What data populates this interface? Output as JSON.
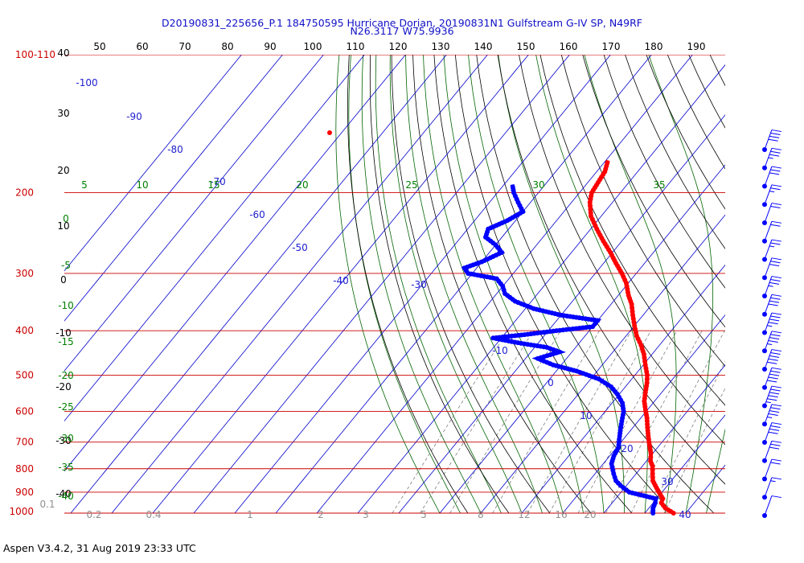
{
  "header": {
    "title_line1": "D20190831_225656_P.1 184750595 Hurricane Dorian, 20190831N1 Gulfstream G-IV SP, N49RF",
    "title_line2": "N26.3117 W75.9936"
  },
  "footer": {
    "text": "Aspen V3.4.2, 31 Aug 2019  23:33 UTC"
  },
  "colors": {
    "temperature": "#ff0000",
    "dewpoint": "#0000ff",
    "isobar": "#cc0000",
    "isotherm": "#0000cc",
    "dry_adiabat": "#000000",
    "moist_adiabat": "#006400",
    "mixing_ratio": "#808080"
  },
  "chart_data": {
    "type": "scatter",
    "kind": "skew-T log-P thermodynamic diagram",
    "pressure_axis": {
      "scale": "log",
      "range_hPa": [
        1000,
        100
      ],
      "tick_labels": [
        "100-110",
        "200",
        "300",
        "400",
        "500",
        "600",
        "700",
        "800",
        "900",
        "1000"
      ]
    },
    "left_temp_labels": [
      "40",
      "30",
      "20",
      "10",
      "0",
      "-10",
      "-20",
      "-30",
      "-40"
    ],
    "theta_top_labels": [
      "50",
      "60",
      "70",
      "80",
      "90",
      "100",
      "110",
      "120",
      "130",
      "140",
      "150",
      "160",
      "170",
      "180",
      "190"
    ],
    "isotherm_labels": [
      "-100",
      "-90",
      "-80",
      "-70",
      "-60",
      "-50",
      "-40",
      "-30",
      "-10",
      "0",
      "10",
      "20",
      "30",
      "40"
    ],
    "theta_e_labels": [
      "5",
      "10",
      "15",
      "20",
      "25",
      "30",
      "35"
    ],
    "theta_e_left_labels": [
      "0",
      "-5",
      "-10",
      "-15",
      "-20",
      "-25",
      "-30",
      "-35",
      "-40"
    ],
    "mixing_ratio_labels": [
      "0.1",
      "0.2",
      "0.4",
      "1",
      "2",
      "3",
      "5",
      "8",
      "12",
      "16",
      "20"
    ],
    "temperature_profile": {
      "name": "Temperature",
      "points": [
        [
          27.0,
          1000
        ],
        [
          24.0,
          975
        ],
        [
          22.0,
          950
        ],
        [
          21.5,
          930
        ],
        [
          20.0,
          910
        ],
        [
          18.5,
          890
        ],
        [
          17.0,
          870
        ],
        [
          15.5,
          850
        ],
        [
          14.0,
          820
        ],
        [
          12.5,
          790
        ],
        [
          11.0,
          770
        ],
        [
          9.5,
          740
        ],
        [
          7.5,
          710
        ],
        [
          5.5,
          680
        ],
        [
          3.5,
          650
        ],
        [
          1.5,
          620
        ],
        [
          -0.5,
          595
        ],
        [
          -2.5,
          570
        ],
        [
          -4.0,
          545
        ],
        [
          -5.5,
          520
        ],
        [
          -7.0,
          500
        ],
        [
          -9.5,
          475
        ],
        [
          -12.0,
          450
        ],
        [
          -14.5,
          430
        ],
        [
          -17.5,
          410
        ],
        [
          -20.0,
          390
        ],
        [
          -22.5,
          370
        ],
        [
          -25.0,
          350
        ],
        [
          -27.5,
          335
        ],
        [
          -30.5,
          315
        ],
        [
          -33.5,
          300
        ],
        [
          -37.0,
          285
        ],
        [
          -40.5,
          270
        ],
        [
          -44.5,
          255
        ],
        [
          -48.5,
          240
        ],
        [
          -52.5,
          225
        ],
        [
          -55.5,
          210
        ],
        [
          -57.0,
          200
        ],
        [
          -57.5,
          190
        ],
        [
          -58.0,
          180
        ],
        [
          -59.5,
          170
        ]
      ]
    },
    "dewpoint_profile": {
      "name": "Dew point",
      "points": [
        [
          22.0,
          1000
        ],
        [
          21.0,
          975
        ],
        [
          20.5,
          950
        ],
        [
          19.8,
          930
        ],
        [
          12.0,
          900
        ],
        [
          8.5,
          870
        ],
        [
          6.5,
          850
        ],
        [
          4.5,
          820
        ],
        [
          2.0,
          780
        ],
        [
          1.0,
          750
        ],
        [
          0.5,
          720
        ],
        [
          -1.0,
          690
        ],
        [
          -2.5,
          660
        ],
        [
          -4.0,
          630
        ],
        [
          -5.5,
          600
        ],
        [
          -7.5,
          575
        ],
        [
          -10.5,
          550
        ],
        [
          -13.5,
          530
        ],
        [
          -18.0,
          510
        ],
        [
          -25.0,
          490
        ],
        [
          -32.0,
          475
        ],
        [
          -37.0,
          460
        ],
        [
          -33.0,
          445
        ],
        [
          -37.0,
          435
        ],
        [
          -45.0,
          425
        ],
        [
          -52.0,
          415
        ],
        [
          -45.0,
          408
        ],
        [
          -38.0,
          400
        ],
        [
          -30.0,
          392
        ],
        [
          -30.0,
          380
        ],
        [
          -40.0,
          370
        ],
        [
          -48.0,
          358
        ],
        [
          -54.0,
          345
        ],
        [
          -58.0,
          332
        ],
        [
          -60.0,
          320
        ],
        [
          -63.0,
          308
        ],
        [
          -71.0,
          300
        ],
        [
          -73.0,
          292
        ],
        [
          -70.0,
          283
        ],
        [
          -67.0,
          270
        ],
        [
          -70.0,
          260
        ],
        [
          -74.0,
          250
        ],
        [
          -75.0,
          240
        ],
        [
          -72.0,
          230
        ],
        [
          -70.0,
          220
        ],
        [
          -73.0,
          210
        ],
        [
          -76.0,
          200
        ],
        [
          -78.0,
          192
        ]
      ]
    },
    "wind_profile_knots": [
      40,
      35,
      30,
      25,
      20,
      20,
      25,
      30,
      35,
      40,
      45,
      45,
      50,
      50,
      55,
      45,
      40,
      30,
      20,
      15,
      10
    ]
  }
}
